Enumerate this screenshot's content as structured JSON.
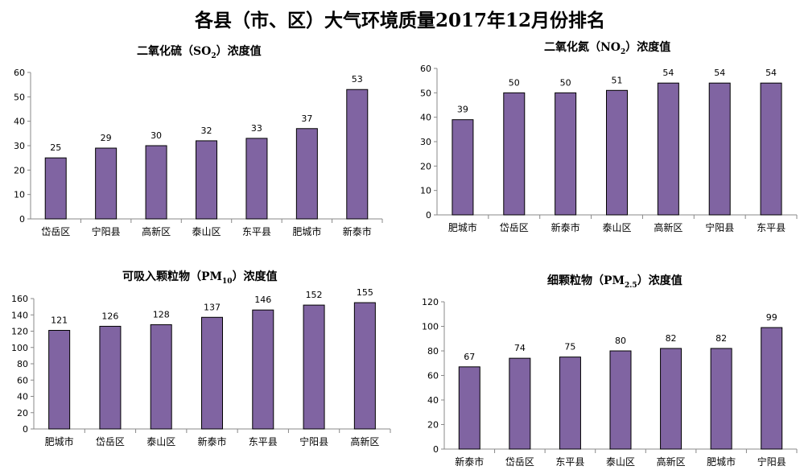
{
  "title": "各县（市、区）大气环境质量2017年12月份排名",
  "colors": {
    "bar": "#8064A2"
  },
  "chart_data": [
    {
      "type": "bar",
      "title_main": "二氧化硫（SO",
      "title_sub": "2",
      "title_tail": "）浓度值",
      "categories": [
        "岱岳区",
        "宁阳县",
        "高新区",
        "泰山区",
        "东平县",
        "肥城市",
        "新泰市"
      ],
      "values": [
        25,
        29,
        30,
        32,
        33,
        37,
        53
      ],
      "ylim": [
        0,
        60
      ],
      "yticks": [
        0,
        10,
        20,
        30,
        40,
        50,
        60
      ],
      "grid": false
    },
    {
      "type": "bar",
      "title_main": "二氧化氮（NO",
      "title_sub": "2",
      "title_tail": "）浓度值",
      "categories": [
        "肥城市",
        "岱岳区",
        "新泰市",
        "泰山区",
        "高新区",
        "宁阳县",
        "东平县"
      ],
      "values": [
        39,
        50,
        50,
        51,
        54,
        54,
        54
      ],
      "ylim": [
        0,
        60
      ],
      "yticks": [
        0,
        10,
        20,
        30,
        40,
        50,
        60
      ],
      "grid": false
    },
    {
      "type": "bar",
      "title_main": "可吸入颗粒物（PM",
      "title_sub": "10",
      "title_tail": "）浓度值",
      "categories": [
        "肥城市",
        "岱岳区",
        "泰山区",
        "新泰市",
        "东平县",
        "宁阳县",
        "高新区"
      ],
      "values": [
        121,
        126,
        128,
        137,
        146,
        152,
        155
      ],
      "ylim": [
        0,
        160
      ],
      "yticks": [
        0,
        20,
        40,
        60,
        80,
        100,
        120,
        140,
        160
      ],
      "grid": false
    },
    {
      "type": "bar",
      "title_main": "细颗粒物（PM",
      "title_sub": "2.5",
      "title_tail": "）浓度值",
      "categories": [
        "新泰市",
        "岱岳区",
        "东平县",
        "泰山区",
        "高新区",
        "肥城市",
        "宁阳县"
      ],
      "values": [
        67,
        74,
        75,
        80,
        82,
        82,
        99
      ],
      "ylim": [
        0,
        120
      ],
      "yticks": [
        0,
        20,
        40,
        60,
        80,
        100,
        120
      ],
      "grid": false
    }
  ]
}
